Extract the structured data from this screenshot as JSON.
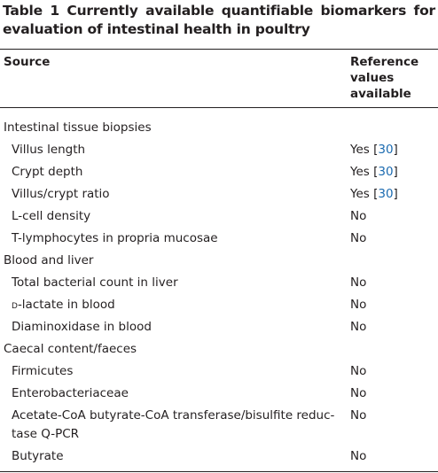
{
  "caption": {
    "label": "Table 1",
    "text": "Currently available quantifiable biomarkers for evaluation of intestinal health in poultry"
  },
  "table": {
    "headers": [
      "Source",
      "Reference values available"
    ],
    "groups": [
      {
        "label": "Intestinal tissue biopsies",
        "rows": [
          {
            "source": "Villus length",
            "value": {
              "text": "Yes [",
              "ref": "30",
              "close": "]"
            }
          },
          {
            "source": "Crypt depth",
            "value": {
              "text": "Yes [",
              "ref": "30",
              "close": "]"
            }
          },
          {
            "source": "Villus/crypt ratio",
            "value": {
              "text": "Yes [",
              "ref": "30",
              "close": "]"
            }
          },
          {
            "source": "L-cell density",
            "value": "No"
          },
          {
            "source": "T-lymphocytes in propria mucosae",
            "value": "No"
          }
        ]
      },
      {
        "label": "Blood and liver",
        "rows": [
          {
            "source": "Total bacterial count in liver",
            "value": "No"
          },
          {
            "source": {
              "smallcaps": "d",
              "text": "-lactate in blood"
            },
            "value": "No"
          },
          {
            "source": "Diaminoxidase in blood",
            "value": "No"
          }
        ]
      },
      {
        "label": "Caecal content/faeces",
        "rows": [
          {
            "source": "Firmicutes",
            "value": "No"
          },
          {
            "source": "Enterobacteriaceae",
            "value": "No"
          },
          {
            "source": [
              "Acetate-CoA butyrate-CoA transferase/bisulfite reduc-",
              "tase Q-PCR"
            ],
            "value": "No"
          },
          {
            "source": "Butyrate",
            "value": "No"
          }
        ]
      }
    ]
  }
}
